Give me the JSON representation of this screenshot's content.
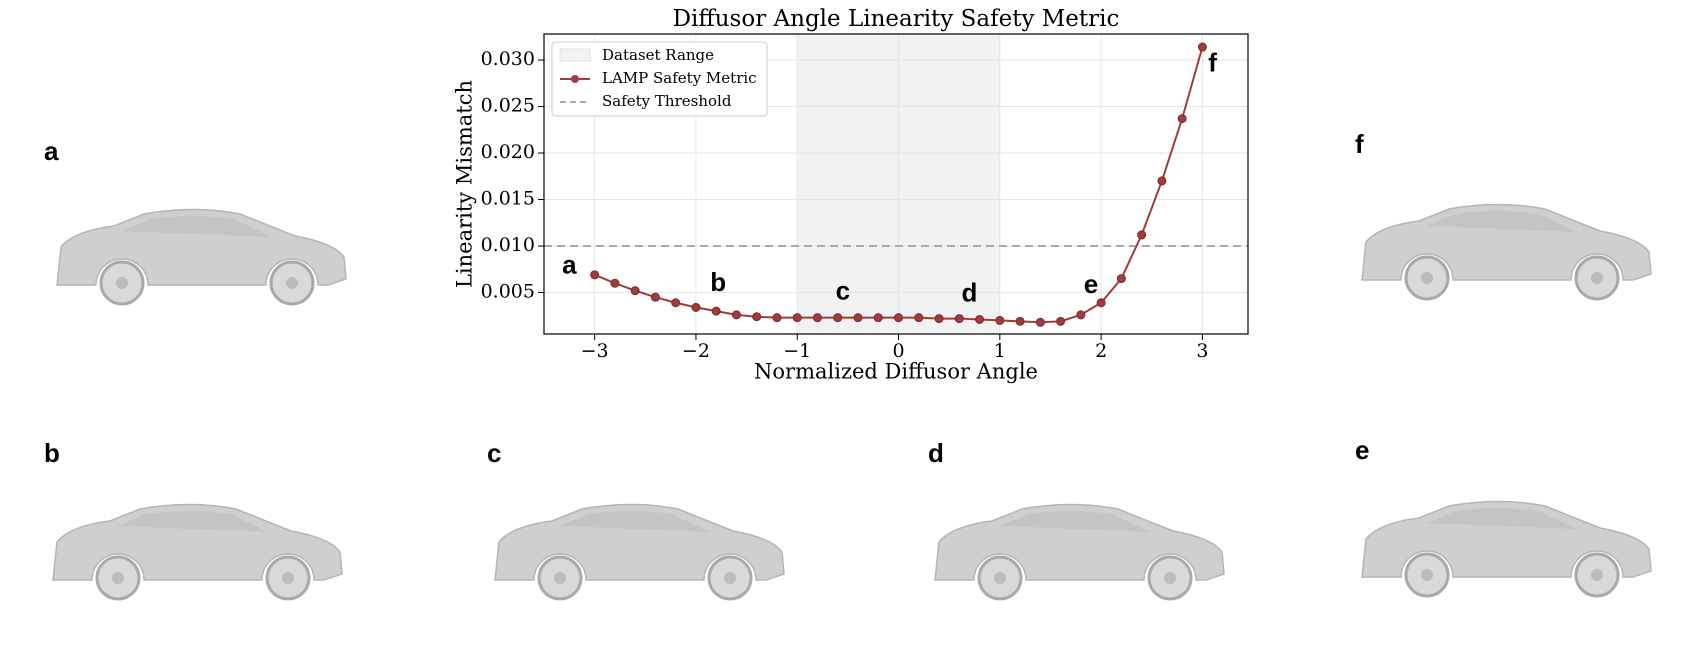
{
  "chart_data": {
    "type": "line",
    "title": "Diffusor Angle Linearity Safety Metric",
    "x_label": "Normalized Diffusor Angle",
    "y_label": "Linearity Mismatch",
    "x": [
      -3,
      -2.8,
      -2.6,
      -2.4,
      -2.2,
      -2,
      -1.8,
      -1.6,
      -1.4,
      -1.2,
      -1,
      -0.8,
      -0.6,
      -0.4,
      -0.2,
      0,
      0.2,
      0.4,
      0.6,
      0.8,
      1,
      1.2,
      1.4,
      1.6,
      1.8,
      2,
      2.2,
      2.4,
      2.6,
      2.8,
      3
    ],
    "series": [
      {
        "name": "LAMP Safety Metric",
        "color": "#a03c3c",
        "values": [
          0.0069,
          0.006,
          0.0052,
          0.0045,
          0.0039,
          0.0034,
          0.003,
          0.0026,
          0.0024,
          0.0023,
          0.0023,
          0.0023,
          0.0023,
          0.0023,
          0.0023,
          0.0023,
          0.0023,
          0.0022,
          0.0022,
          0.0021,
          0.002,
          0.0019,
          0.0018,
          0.0019,
          0.0026,
          0.0039,
          0.0065,
          0.0112,
          0.017,
          0.0237,
          0.0314
        ]
      }
    ],
    "range": {
      "name": "Dataset Range",
      "from": -1,
      "to": 1,
      "color": "#f2f2f2"
    },
    "threshold": {
      "name": "Safety Threshold",
      "value": 0.01,
      "color": "#aaaaaa"
    },
    "annotations": [
      {
        "text": "a",
        "x": -3.25,
        "y": 0.0078
      },
      {
        "text": "b",
        "x": -1.78,
        "y": 0.0059
      },
      {
        "text": "c",
        "x": -0.55,
        "y": 0.005
      },
      {
        "text": "d",
        "x": 0.7,
        "y": 0.0048
      },
      {
        "text": "e",
        "x": 1.9,
        "y": 0.0057
      },
      {
        "text": "f",
        "x": 3.1,
        "y": 0.0295
      }
    ],
    "xlim": [
      -3.5,
      3.45
    ],
    "ylim": [
      0.00054,
      0.0328
    ],
    "xticks": [
      {
        "value": -3,
        "label": "−3"
      },
      {
        "value": -2,
        "label": "−2"
      },
      {
        "value": -1,
        "label": "−1"
      },
      0,
      1,
      2,
      3
    ],
    "yticks": [
      {
        "value": 0.005,
        "label": "0.005"
      },
      {
        "value": 0.01,
        "label": "0.010"
      },
      {
        "value": 0.015,
        "label": "0.015"
      },
      {
        "value": 0.02,
        "label": "0.020"
      },
      {
        "value": 0.025,
        "label": "0.025"
      },
      {
        "value": 0.03,
        "label": "0.030"
      }
    ],
    "grid": true,
    "legend": "upper left"
  },
  "panels": [
    "a",
    "f",
    "b",
    "c",
    "d",
    "e"
  ]
}
